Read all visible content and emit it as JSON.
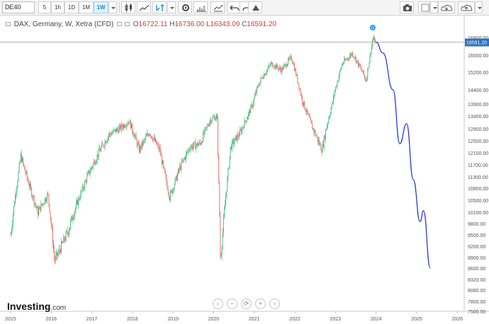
{
  "toolbar": {
    "symbol": "DE40",
    "timeframes": [
      {
        "label": "5",
        "active": false
      },
      {
        "label": "1h",
        "active": false
      },
      {
        "label": "1D",
        "active": false
      },
      {
        "label": "1M",
        "active": false
      },
      {
        "label": "1W",
        "active": true
      }
    ],
    "icons": [
      "dropdown-icon",
      "candles-icon",
      "line-chart-icon",
      "indicators-icon",
      "settings-icon",
      "studies-icon",
      "compare-icon",
      "undo-icon",
      "redo-icon",
      "draw-icon",
      "camera-icon",
      "layout-icon",
      "cloud-download-icon",
      "cloud-upload-icon"
    ]
  },
  "chart_title": {
    "name": "DAX, Germany, W, Xetra (CFD)",
    "open_label": "O",
    "open": "16722.11",
    "high_label": "H",
    "high": "16736.00",
    "low_label": "L",
    "low": "16343.09",
    "close_label": "C",
    "close": "16591.20"
  },
  "price_marker": "16591.20",
  "logo": {
    "text": "Investing",
    "suffix": ".com"
  },
  "nav_buttons": [
    "‹",
    "−",
    "⟳",
    "+",
    "›"
  ],
  "event_marker": "D",
  "colors": {
    "up": "#3cb57a",
    "down": "#e66b6b",
    "projection": "#1c2fd6",
    "axis": "#555555",
    "marker": "#2196f3"
  },
  "chart_data": {
    "type": "candlestick",
    "series": [
      {
        "name": "DAX weekly (approx. closes)",
        "x": [
          "2015-01",
          "2015-04",
          "2015-06",
          "2015-09",
          "2015-12",
          "2016-02",
          "2016-06",
          "2016-09",
          "2016-12",
          "2017-03",
          "2017-06",
          "2017-09",
          "2017-12",
          "2018-03",
          "2018-06",
          "2018-09",
          "2018-12",
          "2019-03",
          "2019-06",
          "2019-09",
          "2019-12",
          "2020-02",
          "2020-03",
          "2020-06",
          "2020-09",
          "2020-12",
          "2021-03",
          "2021-06",
          "2021-09",
          "2021-12",
          "2022-03",
          "2022-06",
          "2022-09",
          "2022-12",
          "2023-03",
          "2023-06",
          "2023-09",
          "2023-10",
          "2023-12",
          "2024-01"
        ],
        "values": [
          9500,
          12000,
          11200,
          10100,
          10700,
          8800,
          9600,
          10500,
          11400,
          12100,
          12700,
          12900,
          13200,
          12200,
          12800,
          12200,
          10600,
          11600,
          12300,
          12400,
          13250,
          13400,
          8800,
          12300,
          12800,
          13700,
          14900,
          15600,
          15300,
          15900,
          14100,
          13000,
          12200,
          13900,
          15600,
          16100,
          15200,
          14800,
          16750,
          16591
        ]
      },
      {
        "name": "projection",
        "x": [
          "2024-01",
          "2024-03",
          "2024-06",
          "2024-08",
          "2024-10",
          "2024-12",
          "2025-02",
          "2025-03",
          "2025-05"
        ],
        "values": [
          16591,
          16100,
          14400,
          12400,
          13100,
          11200,
          9850,
          10150,
          8600
        ]
      }
    ],
    "x_tick_labels": [
      "2015",
      "2016",
      "2017",
      "2018",
      "2019",
      "2020",
      "2021",
      "2022",
      "2023",
      "2024",
      "2025",
      "2026"
    ],
    "y_tick_labels": [
      "16800.00",
      "16000.00",
      "15200.00",
      "14400.00",
      "13900.00",
      "13400.00",
      "12900.00",
      "12500.00",
      "12100.00",
      "11700.00",
      "11300.00",
      "10900.00",
      "10500.00",
      "10100.00",
      "9800.00",
      "9500.00",
      "9200.00",
      "8900.00",
      "8600.00",
      "8320.00",
      "8080.00",
      "7800.00",
      "7500.00"
    ],
    "ylim": [
      7400,
      17200
    ],
    "last_price": 16591.2
  }
}
